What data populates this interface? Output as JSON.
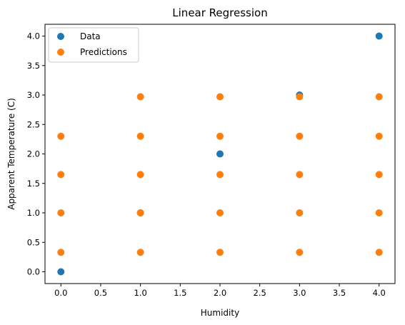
{
  "chart_data": {
    "type": "scatter",
    "title": "Linear Regression",
    "xlabel": "Humidity",
    "ylabel": "Apparent Temperature (C)",
    "xlim": [
      -0.2,
      4.2
    ],
    "ylim": [
      -0.2,
      4.2
    ],
    "x_ticks": [
      "0.0",
      "0.5",
      "1.0",
      "1.5",
      "2.0",
      "2.5",
      "3.0",
      "3.5",
      "4.0"
    ],
    "y_ticks": [
      "0.0",
      "0.5",
      "1.0",
      "1.5",
      "2.0",
      "2.5",
      "3.0",
      "3.5",
      "4.0"
    ],
    "legend_position": "top-left",
    "grid": false,
    "series": [
      {
        "name": "Data",
        "color": "#1f77b4",
        "points": [
          [
            0,
            0
          ],
          [
            1,
            1
          ],
          [
            2,
            2
          ],
          [
            3,
            3
          ],
          [
            4,
            4
          ]
        ]
      },
      {
        "name": "Predictions",
        "color": "#ff7f0e",
        "points": [
          [
            0,
            0.33
          ],
          [
            0,
            1.0
          ],
          [
            0,
            1.65
          ],
          [
            0,
            2.3
          ],
          [
            1,
            0.33
          ],
          [
            1,
            1.0
          ],
          [
            1,
            1.65
          ],
          [
            1,
            2.3
          ],
          [
            1,
            2.97
          ],
          [
            2,
            0.33
          ],
          [
            2,
            1.0
          ],
          [
            2,
            1.65
          ],
          [
            2,
            2.3
          ],
          [
            2,
            2.97
          ],
          [
            3,
            0.33
          ],
          [
            3,
            1.0
          ],
          [
            3,
            1.65
          ],
          [
            3,
            2.3
          ],
          [
            3,
            2.97
          ],
          [
            4,
            0.33
          ],
          [
            4,
            1.0
          ],
          [
            4,
            1.65
          ],
          [
            4,
            2.3
          ],
          [
            4,
            2.97
          ]
        ]
      }
    ]
  }
}
